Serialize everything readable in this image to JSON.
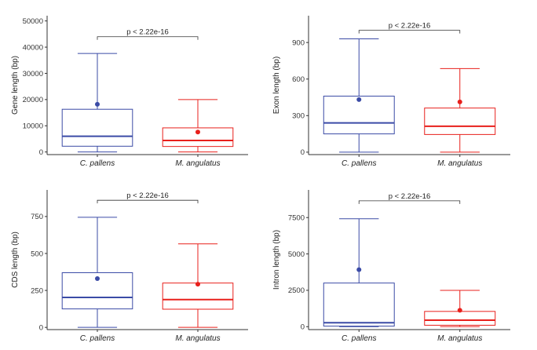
{
  "colors": {
    "series_1": "#3b4ba6",
    "series_2": "#e8201c",
    "axis": "#333333"
  },
  "chart_data": [
    {
      "type": "box",
      "categories": [
        "C. pallens",
        "M. angulatus"
      ],
      "ylabel": "Gene length (bp)",
      "ylim": [
        -1000,
        52000
      ],
      "yticks": [
        0,
        10000,
        20000,
        30000,
        40000,
        50000
      ],
      "boxes": [
        {
          "whisker_low": 0,
          "q1": 2200,
          "median": 6000,
          "q3": 16300,
          "whisker_high": 37600,
          "mean": 18200
        },
        {
          "whisker_low": 0,
          "q1": 2100,
          "median": 4400,
          "q3": 9200,
          "whisker_high": 20000,
          "mean": 7600
        }
      ],
      "annotation": {
        "text": "p < 2.22e-16",
        "y": 44000
      }
    },
    {
      "type": "box",
      "categories": [
        "C. pallens",
        "M. angulatus"
      ],
      "ylabel": "Exon length (bp)",
      "ylim": [
        -20,
        1120
      ],
      "yticks": [
        0,
        300,
        600,
        900
      ],
      "boxes": [
        {
          "whisker_low": 0,
          "q1": 150,
          "median": 240,
          "q3": 460,
          "whisker_high": 930,
          "mean": 432
        },
        {
          "whisker_low": 0,
          "q1": 145,
          "median": 213,
          "q3": 362,
          "whisker_high": 686,
          "mean": 412
        }
      ],
      "annotation": {
        "text": "p < 2.22e-16",
        "y": 1000
      }
    },
    {
      "type": "box",
      "categories": [
        "C. pallens",
        "M. angulatus"
      ],
      "ylabel": "CDS length (bp)",
      "ylim": [
        -15,
        930
      ],
      "yticks": [
        0,
        250,
        500,
        750
      ],
      "boxes": [
        {
          "whisker_low": 0,
          "q1": 125,
          "median": 203,
          "q3": 370,
          "whisker_high": 745,
          "mean": 330
        },
        {
          "whisker_low": 0,
          "q1": 123,
          "median": 188,
          "q3": 300,
          "whisker_high": 565,
          "mean": 292
        }
      ],
      "annotation": {
        "text": "p < 2.22e-16",
        "y": 860
      }
    },
    {
      "type": "box",
      "categories": [
        "C. pallens",
        "M. angulatus"
      ],
      "ylabel": "Intron length (bp)",
      "ylim": [
        -200,
        9400
      ],
      "yticks": [
        0,
        2500,
        5000,
        7500
      ],
      "boxes": [
        {
          "whisker_low": 0,
          "q1": 40,
          "median": 270,
          "q3": 3000,
          "whisker_high": 7420,
          "mean": 3920
        },
        {
          "whisker_low": 0,
          "q1": 100,
          "median": 450,
          "q3": 1050,
          "whisker_high": 2500,
          "mean": 1130
        }
      ],
      "annotation": {
        "text": "p < 2.22e-16",
        "y": 8650
      }
    }
  ]
}
